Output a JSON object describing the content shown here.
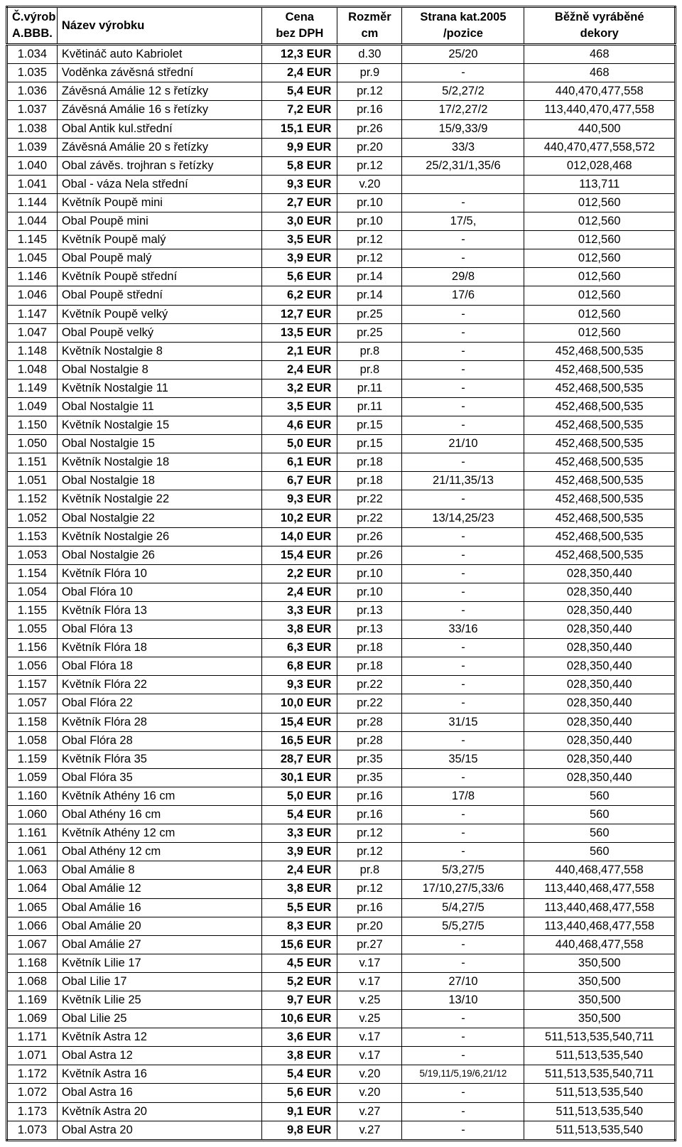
{
  "table": {
    "columns": [
      {
        "key": "code",
        "line1": "Č.výrob",
        "line2": "A.BBB.",
        "class": "col-code"
      },
      {
        "key": "name",
        "line1": "Název výrobku",
        "line2": "",
        "class": "col-name"
      },
      {
        "key": "price",
        "line1": "Cena",
        "line2": "bez DPH",
        "class": "col-price"
      },
      {
        "key": "dim",
        "line1": "Rozměr",
        "line2": "cm",
        "class": "col-dim"
      },
      {
        "key": "page",
        "line1": "Strana kat.2005",
        "line2": "/pozice",
        "class": "col-page"
      },
      {
        "key": "dek",
        "line1": "Běžně vyráběné",
        "line2": "dekory",
        "class": "col-dek"
      }
    ],
    "rows": [
      {
        "code": "1.034",
        "name": "Květináč auto Kabriolet",
        "price": "12,3 EUR",
        "dim": "d.30",
        "page": "25/20",
        "dek": "468"
      },
      {
        "code": "1.035",
        "name": "Voděnka závěsná střední",
        "price": "2,4 EUR",
        "dim": "pr.9",
        "page": "-",
        "dek": "468"
      },
      {
        "code": "1.036",
        "name": "Závěsná Amálie 12 s řetízky",
        "price": "5,4 EUR",
        "dim": "pr.12",
        "page": "5/2,27/2",
        "dek": "440,470,477,558"
      },
      {
        "code": "1.037",
        "name": "Závěsná Amálie 16 s řetízky",
        "price": "7,2 EUR",
        "dim": "pr.16",
        "page": "17/2,27/2",
        "dek": "113,440,470,477,558"
      },
      {
        "code": "1.038",
        "name": "Obal Antik kul.střední",
        "price": "15,1 EUR",
        "dim": "pr.26",
        "page": "15/9,33/9",
        "dek": "440,500"
      },
      {
        "code": "1.039",
        "name": "Závěsná Amálie 20 s řetízky",
        "price": "9,9 EUR",
        "dim": "pr.20",
        "page": "33/3",
        "dek": "440,470,477,558,572"
      },
      {
        "code": "1.040",
        "name": "Obal závěs. trojhran s řetízky",
        "price": "5,8 EUR",
        "dim": "pr.12",
        "page": "25/2,31/1,35/6",
        "dek": "012,028,468"
      },
      {
        "code": "1.041",
        "name": "Obal - váza Nela střední",
        "price": "9,3 EUR",
        "dim": "v.20",
        "page": "",
        "dek": "113,711"
      },
      {
        "code": "1.144",
        "name": "Květník Poupě mini",
        "price": "2,7 EUR",
        "dim": "pr.10",
        "page": "-",
        "dek": "012,560"
      },
      {
        "code": "1.044",
        "name": "Obal Poupě mini",
        "price": "3,0 EUR",
        "dim": "pr.10",
        "page": "17/5,",
        "dek": "012,560"
      },
      {
        "code": "1.145",
        "name": "Květník Poupě malý",
        "price": "3,5 EUR",
        "dim": "pr.12",
        "page": "-",
        "dek": "012,560"
      },
      {
        "code": "1.045",
        "name": "Obal Poupě malý",
        "price": "3,9 EUR",
        "dim": "pr.12",
        "page": "-",
        "dek": "012,560"
      },
      {
        "code": "1.146",
        "name": "Květník Poupě střední",
        "price": "5,6 EUR",
        "dim": "pr.14",
        "page": "29/8",
        "dek": "012,560"
      },
      {
        "code": "1.046",
        "name": "Obal Poupě střední",
        "price": "6,2 EUR",
        "dim": "pr.14",
        "page": "17/6",
        "dek": "012,560"
      },
      {
        "code": "1.147",
        "name": "Květník Poupě velký",
        "price": "12,7 EUR",
        "dim": "pr.25",
        "page": "-",
        "dek": "012,560"
      },
      {
        "code": "1.047",
        "name": "Obal Poupě velký",
        "price": "13,5 EUR",
        "dim": "pr.25",
        "page": "-",
        "dek": "012,560"
      },
      {
        "code": "1.148",
        "name": "Květník Nostalgie 8",
        "price": "2,1 EUR",
        "dim": "pr.8",
        "page": "-",
        "dek": "452,468,500,535"
      },
      {
        "code": "1.048",
        "name": "Obal Nostalgie 8",
        "price": "2,4 EUR",
        "dim": "pr.8",
        "page": "-",
        "dek": "452,468,500,535"
      },
      {
        "code": "1.149",
        "name": "Květník Nostalgie 11",
        "price": "3,2 EUR",
        "dim": "pr.11",
        "page": "-",
        "dek": "452,468,500,535"
      },
      {
        "code": "1.049",
        "name": "Obal Nostalgie 11",
        "price": "3,5 EUR",
        "dim": "pr.11",
        "page": "-",
        "dek": "452,468,500,535"
      },
      {
        "code": "1.150",
        "name": "Květník Nostalgie 15",
        "price": "4,6 EUR",
        "dim": "pr.15",
        "page": "-",
        "dek": "452,468,500,535"
      },
      {
        "code": "1.050",
        "name": "Obal Nostalgie 15",
        "price": "5,0 EUR",
        "dim": "pr.15",
        "page": "21/10",
        "dek": "452,468,500,535"
      },
      {
        "code": "1.151",
        "name": "Květník Nostalgie 18",
        "price": "6,1 EUR",
        "dim": "pr.18",
        "page": "-",
        "dek": "452,468,500,535"
      },
      {
        "code": "1.051",
        "name": "Obal Nostalgie 18",
        "price": "6,7 EUR",
        "dim": "pr.18",
        "page": "21/11,35/13",
        "dek": "452,468,500,535"
      },
      {
        "code": "1.152",
        "name": "Květník Nostalgie 22",
        "price": "9,3 EUR",
        "dim": "pr.22",
        "page": "-",
        "dek": "452,468,500,535"
      },
      {
        "code": "1.052",
        "name": "Obal Nostalgie 22",
        "price": "10,2 EUR",
        "dim": "pr.22",
        "page": "13/14,25/23",
        "dek": "452,468,500,535"
      },
      {
        "code": "1.153",
        "name": "Květník Nostalgie 26",
        "price": "14,0 EUR",
        "dim": "pr.26",
        "page": "-",
        "dek": "452,468,500,535"
      },
      {
        "code": "1.053",
        "name": "Obal Nostalgie 26",
        "price": "15,4 EUR",
        "dim": "pr.26",
        "page": "-",
        "dek": "452,468,500,535"
      },
      {
        "code": "1.154",
        "name": "Květník Flóra 10",
        "price": "2,2 EUR",
        "dim": "pr.10",
        "page": "-",
        "dek": "028,350,440"
      },
      {
        "code": "1.054",
        "name": "Obal Flóra 10",
        "price": "2,4 EUR",
        "dim": "pr.10",
        "page": "-",
        "dek": "028,350,440"
      },
      {
        "code": "1.155",
        "name": "Květník Flóra 13",
        "price": "3,3 EUR",
        "dim": "pr.13",
        "page": "-",
        "dek": "028,350,440"
      },
      {
        "code": "1.055",
        "name": "Obal Flóra 13",
        "price": "3,8 EUR",
        "dim": "pr.13",
        "page": "33/16",
        "dek": "028,350,440"
      },
      {
        "code": "1.156",
        "name": "Květník Flóra 18",
        "price": "6,3 EUR",
        "dim": "pr.18",
        "page": "-",
        "dek": "028,350,440"
      },
      {
        "code": "1.056",
        "name": "Obal Flóra 18",
        "price": "6,8 EUR",
        "dim": "pr.18",
        "page": "-",
        "dek": "028,350,440"
      },
      {
        "code": "1.157",
        "name": "Květník Flóra 22",
        "price": "9,3 EUR",
        "dim": "pr.22",
        "page": "-",
        "dek": "028,350,440"
      },
      {
        "code": "1.057",
        "name": "Obal Flóra 22",
        "price": "10,0 EUR",
        "dim": "pr.22",
        "page": "-",
        "dek": "028,350,440"
      },
      {
        "code": "1.158",
        "name": "Květník Flóra 28",
        "price": "15,4 EUR",
        "dim": "pr.28",
        "page": "31/15",
        "dek": "028,350,440"
      },
      {
        "code": "1.058",
        "name": "Obal Flóra 28",
        "price": "16,5 EUR",
        "dim": "pr.28",
        "page": "-",
        "dek": "028,350,440"
      },
      {
        "code": "1.159",
        "name": "Květník Flóra 35",
        "price": "28,7 EUR",
        "dim": "pr.35",
        "page": "35/15",
        "dek": "028,350,440"
      },
      {
        "code": "1.059",
        "name": "Obal Flóra 35",
        "price": "30,1 EUR",
        "dim": "pr.35",
        "page": "-",
        "dek": "028,350,440"
      },
      {
        "code": "1.160",
        "name": "Květník Athény 16 cm",
        "price": "5,0 EUR",
        "dim": "pr.16",
        "page": "17/8",
        "dek": "560"
      },
      {
        "code": "1.060",
        "name": "Obal Athény 16 cm",
        "price": "5,4 EUR",
        "dim": "pr.16",
        "page": "-",
        "dek": "560"
      },
      {
        "code": "1.161",
        "name": "Květník Athény 12 cm",
        "price": "3,3 EUR",
        "dim": "pr.12",
        "page": "-",
        "dek": "560"
      },
      {
        "code": "1.061",
        "name": "Obal Athény 12 cm",
        "price": "3,9 EUR",
        "dim": "pr.12",
        "page": "-",
        "dek": "560"
      },
      {
        "code": "1.063",
        "name": "Obal Amálie 8",
        "price": "2,4 EUR",
        "dim": "pr.8",
        "page": "5/3,27/5",
        "dek": "440,468,477,558"
      },
      {
        "code": "1.064",
        "name": "Obal Amálie 12",
        "price": "3,8 EUR",
        "dim": "pr.12",
        "page": "17/10,27/5,33/6",
        "dek": "113,440,468,477,558"
      },
      {
        "code": "1.065",
        "name": "Obal Amálie 16",
        "price": "5,5 EUR",
        "dim": "pr.16",
        "page": "5/4,27/5",
        "dek": "113,440,468,477,558"
      },
      {
        "code": "1.066",
        "name": "Obal Amálie 20",
        "price": "8,3 EUR",
        "dim": "pr.20",
        "page": "5/5,27/5",
        "dek": "113,440,468,477,558"
      },
      {
        "code": "1.067",
        "name": "Obal Amálie 27",
        "price": "15,6 EUR",
        "dim": "pr.27",
        "page": "-",
        "dek": "440,468,477,558"
      },
      {
        "code": "1.168",
        "name": "Květník Lilie 17",
        "price": "4,5 EUR",
        "dim": "v.17",
        "page": "-",
        "dek": "350,500"
      },
      {
        "code": "1.068",
        "name": "Obal Lilie 17",
        "price": "5,2 EUR",
        "dim": "v.17",
        "page": "27/10",
        "dek": "350,500"
      },
      {
        "code": "1.169",
        "name": "Květník Lilie 25",
        "price": "9,7 EUR",
        "dim": "v.25",
        "page": "13/10",
        "dek": "350,500"
      },
      {
        "code": "1.069",
        "name": "Obal Lilie 25",
        "price": "10,6 EUR",
        "dim": "v.25",
        "page": "-",
        "dek": "350,500"
      },
      {
        "code": "1.171",
        "name": "Květník Astra 12",
        "price": "3,6 EUR",
        "dim": "v.17",
        "page": "-",
        "dek": "511,513,535,540,711"
      },
      {
        "code": "1.071",
        "name": "Obal Astra 12",
        "price": "3,8 EUR",
        "dim": "v.17",
        "page": "-",
        "dek": "511,513,535,540"
      },
      {
        "code": "1.172",
        "name": "Květník Astra 16",
        "price": "5,4 EUR",
        "dim": "v.20",
        "page": "5/19,11/5,19/6,21/12",
        "page_small": true,
        "dek": "511,513,535,540,711"
      },
      {
        "code": "1.072",
        "name": "Obal Astra 16",
        "price": "5,6 EUR",
        "dim": "v.20",
        "page": "-",
        "dek": "511,513,535,540"
      },
      {
        "code": "1.173",
        "name": "Květník Astra 20",
        "price": "9,1 EUR",
        "dim": "v.27",
        "page": "-",
        "dek": "511,513,535,540"
      },
      {
        "code": "1.073",
        "name": "Obal Astra 20",
        "price": "9,8 EUR",
        "dim": "v.27",
        "page": "-",
        "dek": "511,513,535,540"
      }
    ]
  }
}
